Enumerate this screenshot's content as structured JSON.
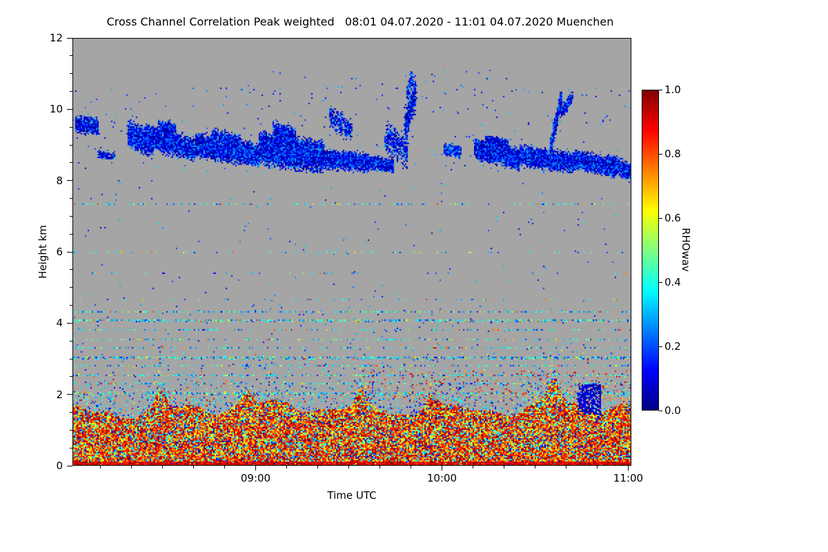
{
  "page": {
    "background": "#ffffff"
  },
  "chart_data": {
    "type": "heatmap",
    "title": "Cross Channel Correlation Peak weighted",
    "date_range_label": "08:01 04.07.2020 - 11:01 04.07.2020",
    "station": "Muenchen",
    "title_display": "Cross Channel Correlation Peak weighted   08:01 04.07.2020 - 11:01 04.07.2020 Muenchen",
    "xlabel": "Time UTC",
    "ylabel": "Height km",
    "x_axis": {
      "start": "08:01",
      "end": "11:01",
      "ticks": [
        "09:00",
        "10:00",
        "11:00"
      ],
      "minor_step_min": 10
    },
    "y_axis": {
      "range": [
        0,
        12
      ],
      "ticks": [
        0,
        2,
        4,
        6,
        8,
        10,
        12
      ],
      "minor_step": 0.5
    },
    "colorbar": {
      "label": "RHOwav",
      "range": [
        0,
        1
      ],
      "ticks": [
        "0.0",
        "0.2",
        "0.4",
        "0.6",
        "0.8",
        "1.0"
      ],
      "colormap": "jet"
    },
    "description": "Time-height heatmap of cross-channel correlation RHOwav. Boundary layer below ~1.8 km: high correlation 0.6-1.0 (red/orange speckle). Cirrus cloud band 8.2-10.6 km: low correlation 0.05-0.3 (blue). Thin horizontal artifact lines of moderate correlation 0.2-0.5 (cyan) at several heights. Gray background = no signal.",
    "render": {
      "seed": 42,
      "background": "#a5a5a5",
      "bl_top": {
        "base": 1.6,
        "waves": [
          [
            0.15,
            37,
            1.3
          ],
          [
            0.1,
            11,
            4.0
          ],
          [
            0.07,
            83,
            2.2
          ]
        ]
      },
      "bl_plumes": [
        [
          0.157,
          2.05,
          0.008
        ],
        [
          0.31,
          1.95,
          0.01
        ],
        [
          0.515,
          2.0,
          0.007
        ],
        [
          0.64,
          2.15,
          0.012
        ],
        [
          0.86,
          2.3,
          0.01
        ]
      ],
      "bl_levels": [
        [
          0.52,
          0.75,
          1.0
        ],
        [
          0.7,
          0.6,
          0.75
        ],
        [
          0.84,
          0.38,
          0.6
        ],
        [
          0.95,
          0.2,
          0.38
        ],
        [
          1.0,
          0.05,
          0.2
        ]
      ],
      "bottom_strip": [
        0.1,
        0.82,
        1.0
      ],
      "mid": {
        "h_max": 3.45,
        "p0": 0.3,
        "decay": 0.45,
        "levels": [
          [
            0.5,
            0.08,
            0.35
          ],
          [
            0.85,
            0.32,
            0.52
          ],
          [
            1.0,
            0.6,
            0.95
          ]
        ]
      },
      "red_patch": [
        0.52,
        1.0,
        1.8,
        2.7,
        0.05,
        0.65,
        1.0
      ],
      "lines": [
        [
          2.05,
          0.5
        ],
        [
          2.3,
          0.38
        ],
        [
          2.55,
          0.42
        ],
        [
          2.8,
          0.36
        ],
        [
          3.05,
          0.6
        ],
        [
          3.3,
          0.3
        ],
        [
          3.55,
          0.26
        ],
        [
          3.8,
          0.26
        ],
        [
          4.1,
          0.6
        ],
        [
          4.3,
          0.45
        ],
        [
          4.65,
          0.12
        ],
        [
          5.4,
          0.06
        ],
        [
          6.0,
          0.16
        ],
        [
          7.35,
          0.28
        ]
      ],
      "line_levels": [
        [
          0.55,
          0.3,
          0.5
        ],
        [
          0.85,
          0.12,
          0.3
        ],
        [
          1.0,
          0.55,
          0.85
        ]
      ],
      "blob": [
        0.905,
        0.945,
        1.45,
        2.25,
        0.75,
        0.02,
        0.14
      ],
      "clouds": [
        [
          0.005,
          0.045,
          9.6,
          9.5,
          0.1,
          900
        ],
        [
          0.045,
          0.075,
          8.75,
          8.7,
          0.05,
          160
        ],
        [
          0.1,
          0.145,
          9.3,
          9.0,
          0.16,
          1400
        ],
        [
          0.13,
          0.22,
          9.25,
          8.85,
          0.14,
          2600
        ],
        [
          0.155,
          0.185,
          9.55,
          9.45,
          0.07,
          300
        ],
        [
          0.22,
          0.335,
          9.0,
          8.7,
          0.14,
          3800
        ],
        [
          0.25,
          0.3,
          9.3,
          9.1,
          0.08,
          500
        ],
        [
          0.335,
          0.45,
          8.9,
          8.65,
          0.19,
          5200
        ],
        [
          0.36,
          0.4,
          9.45,
          9.2,
          0.1,
          700
        ],
        [
          0.45,
          0.53,
          8.6,
          8.5,
          0.11,
          2200
        ],
        [
          0.46,
          0.5,
          9.8,
          9.4,
          0.14,
          320
        ],
        [
          0.53,
          0.575,
          8.5,
          8.4,
          0.08,
          900
        ],
        [
          0.56,
          0.6,
          9.2,
          8.8,
          0.22,
          420
        ],
        [
          0.595,
          0.615,
          9.5,
          10.5,
          0.22,
          480
        ],
        [
          0.598,
          0.608,
          10.4,
          10.9,
          0.1,
          90
        ],
        [
          0.665,
          0.695,
          8.9,
          8.8,
          0.08,
          320
        ],
        [
          0.72,
          0.8,
          8.9,
          8.6,
          0.12,
          3000
        ],
        [
          0.74,
          0.78,
          9.15,
          9.0,
          0.06,
          420
        ],
        [
          0.8,
          0.9,
          8.7,
          8.5,
          0.12,
          3200
        ],
        [
          0.855,
          0.875,
          8.9,
          10.3,
          0.11,
          650
        ],
        [
          0.875,
          0.895,
          9.9,
          10.35,
          0.08,
          240
        ],
        [
          0.9,
          0.97,
          8.6,
          8.35,
          0.11,
          2200
        ],
        [
          0.955,
          1.0,
          8.5,
          8.25,
          0.1,
          1200
        ]
      ],
      "cloud_v": [
        0.02,
        0.28,
        1.6
      ],
      "dots": [
        [
          0,
          1,
          8.2,
          10.6,
          260
        ],
        [
          0,
          1,
          4.6,
          8.05,
          130
        ],
        [
          0.3,
          0.78,
          10.2,
          11.1,
          40
        ],
        [
          0,
          1,
          2.2,
          4.55,
          150
        ]
      ],
      "dot_v": [
        0.05,
        0.3
      ]
    }
  }
}
